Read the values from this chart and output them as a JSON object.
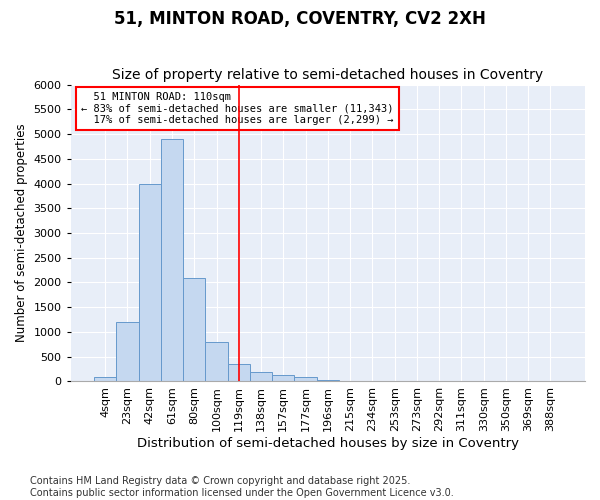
{
  "title1": "51, MINTON ROAD, COVENTRY, CV2 2XH",
  "title2": "Size of property relative to semi-detached houses in Coventry",
  "xlabel": "Distribution of semi-detached houses by size in Coventry",
  "ylabel": "Number of semi-detached properties",
  "categories": [
    "4sqm",
    "23sqm",
    "42sqm",
    "61sqm",
    "80sqm",
    "100sqm",
    "119sqm",
    "138sqm",
    "157sqm",
    "177sqm",
    "196sqm",
    "215sqm",
    "234sqm",
    "253sqm",
    "273sqm",
    "292sqm",
    "311sqm",
    "330sqm",
    "350sqm",
    "369sqm",
    "388sqm"
  ],
  "values": [
    100,
    1200,
    4000,
    4900,
    2100,
    800,
    350,
    200,
    130,
    100,
    30,
    15,
    0,
    0,
    0,
    0,
    0,
    0,
    0,
    0,
    0
  ],
  "bar_color": "#c5d8f0",
  "bar_edge_color": "#6699cc",
  "property_label": "51 MINTON ROAD: 110sqm",
  "pct_smaller": 83,
  "pct_larger": 17,
  "n_smaller": 11343,
  "n_larger": 2299,
  "vline_x_index": 6.0,
  "ylim": [
    0,
    6000
  ],
  "yticks": [
    0,
    500,
    1000,
    1500,
    2000,
    2500,
    3000,
    3500,
    4000,
    4500,
    5000,
    5500,
    6000
  ],
  "background_color": "#e8eef8",
  "footer": "Contains HM Land Registry data © Crown copyright and database right 2025.\nContains public sector information licensed under the Open Government Licence v3.0.",
  "title1_fontsize": 12,
  "title2_fontsize": 10,
  "xlabel_fontsize": 9.5,
  "ylabel_fontsize": 8.5,
  "tick_fontsize": 8,
  "footer_fontsize": 7
}
